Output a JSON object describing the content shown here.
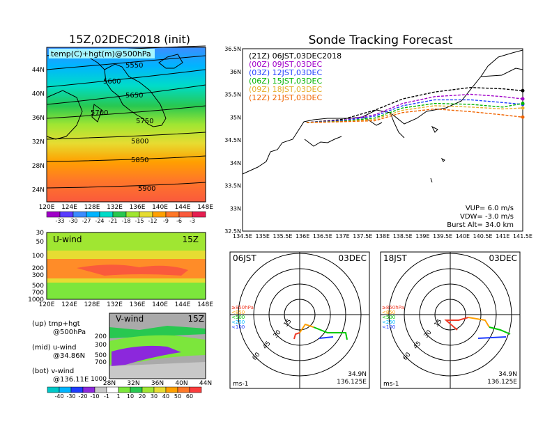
{
  "left_panel": {
    "title": "15Z,02DEC2018 (init)",
    "map_label": "temp(C)+hgt(m)@500hPa",
    "height_contours": [
      "5550",
      "5600",
      "5650",
      "5700",
      "5750",
      "5800",
      "5850",
      "5900"
    ],
    "lat_ticks": [
      "44N",
      "40N",
      "36N",
      "32N",
      "28N",
      "24N"
    ],
    "lon_ticks": [
      "120E",
      "124E",
      "128E",
      "132E",
      "136E",
      "140E",
      "144E",
      "148E"
    ],
    "temp_scale": [
      "-33",
      "-30",
      "-27",
      "-24",
      "-21",
      "-18",
      "-15",
      "-12",
      "-9",
      "-6",
      "-3"
    ],
    "u_wind_title": "U-wind",
    "u_wind_time": "15Z",
    "pressure_ticks": [
      "30",
      "50",
      "100",
      "200",
      "300",
      "500",
      "700",
      "1000"
    ],
    "v_wind_title": "V-wind",
    "v_wind_time": "15Z",
    "v_pressure_ticks": [
      "200",
      "300",
      "500",
      "700",
      "1000"
    ],
    "v_lat_ticks": [
      "28N",
      "32N",
      "36N",
      "40N",
      "44N"
    ],
    "wind_scale": [
      "-40",
      "-30",
      "-20",
      "-10",
      "-1",
      "1",
      "10",
      "20",
      "30",
      "40",
      "50",
      "60"
    ],
    "legend_up": "(up) tmp+hgt",
    "legend_up2": "@500hPa",
    "legend_mid": "(mid) u-wind",
    "legend_mid2": "@34.86N",
    "legend_bot": "(bot) v-wind",
    "legend_bot2": "@136.11E"
  },
  "tracking": {
    "title": "Sonde Tracking Forecast",
    "lat_ticks": [
      "36.5N",
      "36N",
      "35.5N",
      "35N",
      "34.5N",
      "34N",
      "33.5N",
      "33N",
      "32.5N"
    ],
    "lon_ticks": [
      "134.5E",
      "135E",
      "135.5E",
      "136E",
      "136.5E",
      "137E",
      "137.5E",
      "138E",
      "138.5E",
      "139E",
      "139.5E",
      "140E",
      "140.5E",
      "141E",
      "141.5E"
    ],
    "legend": [
      {
        "label": "(21Z)  06JST,03DEC2018",
        "color": "#000000"
      },
      {
        "label": "(00Z)  09JST,03DEC",
        "color": "#a000c8"
      },
      {
        "label": "(03Z)  12JST,03DEC",
        "color": "#1e3cff"
      },
      {
        "label": "(06Z)  15JST,03DEC",
        "color": "#00b400"
      },
      {
        "label": "(09Z)  18JST,03DEC",
        "color": "#e6af2d"
      },
      {
        "label": "(12Z)  21JST,03DEC",
        "color": "#f06400"
      }
    ],
    "vup": "VUP=  6.0  m/s",
    "vdw": "VDW=  -3.0  m/s",
    "burst": "Burst Alt=  34.0  km"
  },
  "hodographs": [
    {
      "time": "06JST",
      "date": "03DEC",
      "lat": "34.9N",
      "lon": "136.125E",
      "unit": "ms-1",
      "rings": [
        "15",
        "30",
        "45",
        "60"
      ],
      "pressure_legend": [
        "≥850hPa",
        "<850",
        "<500",
        "<250",
        "<100"
      ],
      "pressure_colors": [
        "#f03c28",
        "#ffa000",
        "#00c800",
        "#00b4ff",
        "#1e3cff"
      ]
    },
    {
      "time": "18JST",
      "date": "03DEC",
      "lat": "34.9N",
      "lon": "136.125E",
      "unit": "ms-1",
      "rings": [
        "15",
        "30",
        "45",
        "60"
      ],
      "pressure_legend": [
        "≥850hPa",
        "<850",
        "<500",
        "<250",
        "<100"
      ],
      "pressure_colors": [
        "#f03c28",
        "#ffa000",
        "#00c800",
        "#00b4ff",
        "#1e3cff"
      ]
    }
  ],
  "chart_data": [
    {
      "type": "heatmap",
      "title": "15Z,02DEC2018 (init)",
      "subtitle": "temp(C)+hgt(m)@500hPa",
      "xlabel": "",
      "ylabel": "",
      "xlim": [
        "120E",
        "148E"
      ],
      "ylim": [
        "22N",
        "47N"
      ],
      "contour_levels": [
        5550,
        5600,
        5650,
        5700,
        5750,
        5800,
        5850,
        5900
      ],
      "color_levels": [
        -33,
        -30,
        -27,
        -24,
        -21,
        -18,
        -15,
        -12,
        -9,
        -6,
        -3
      ]
    },
    {
      "type": "heatmap",
      "title": "U-wind",
      "subtitle": "15Z",
      "xlim": [
        "120E",
        "148E"
      ],
      "ylim": [
        1000,
        30
      ],
      "log_y": true
    },
    {
      "type": "heatmap",
      "title": "V-wind",
      "subtitle": "15Z",
      "xlim": [
        "28N",
        "44N"
      ],
      "ylim": [
        1000,
        150
      ],
      "log_y": true,
      "color_levels": [
        -40,
        -30,
        -20,
        -10,
        -1,
        1,
        10,
        20,
        30,
        40,
        50,
        60
      ]
    },
    {
      "type": "line",
      "title": "Sonde Tracking Forecast",
      "xlim": [
        134.5,
        141.5
      ],
      "ylim": [
        32.5,
        36.5
      ],
      "series": [
        {
          "name": "(21Z)  06JST,03DEC2018",
          "x": [
            136.1,
            137.0,
            137.8,
            138.5,
            139.3,
            140.2,
            141.0,
            141.5
          ],
          "y": [
            34.88,
            34.95,
            35.15,
            35.4,
            35.55,
            35.65,
            35.62,
            35.58
          ]
        },
        {
          "name": "(00Z)  09JST,03DEC",
          "x": [
            136.1,
            137.0,
            137.8,
            138.5,
            139.3,
            140.2,
            141.0,
            141.5
          ],
          "y": [
            34.88,
            34.93,
            35.05,
            35.3,
            35.45,
            35.5,
            35.45,
            35.4
          ]
        },
        {
          "name": "(03Z)  12JST,03DEC",
          "x": [
            136.1,
            137.0,
            137.8,
            138.5,
            139.3,
            140.2,
            141.0,
            141.5
          ],
          "y": [
            34.88,
            34.92,
            35.02,
            35.25,
            35.38,
            35.38,
            35.32,
            35.28
          ]
        },
        {
          "name": "(06Z)  15JST,03DEC",
          "x": [
            136.1,
            137.0,
            137.8,
            138.5,
            139.3,
            140.2,
            141.0,
            141.5
          ],
          "y": [
            34.88,
            34.91,
            34.98,
            35.2,
            35.3,
            35.28,
            35.22,
            35.3
          ]
        },
        {
          "name": "(09Z)  18JST,03DEC",
          "x": [
            136.1,
            137.0,
            137.8,
            138.5,
            139.3,
            140.2,
            141.0,
            141.5
          ],
          "y": [
            34.88,
            34.9,
            34.95,
            35.15,
            35.25,
            35.22,
            35.18,
            35.2
          ]
        },
        {
          "name": "(12Z)  21JST,03DEC",
          "x": [
            136.1,
            137.0,
            137.8,
            138.5,
            139.3,
            140.2,
            141.0,
            141.5
          ],
          "y": [
            34.88,
            34.9,
            34.92,
            35.1,
            35.18,
            35.12,
            35.05,
            35.0
          ]
        }
      ]
    },
    {
      "type": "scatter",
      "title": "06JST 03DEC",
      "xlabel": "ms-1",
      "rings": [
        15,
        30,
        45,
        60
      ]
    },
    {
      "type": "scatter",
      "title": "18JST 03DEC",
      "xlabel": "ms-1",
      "rings": [
        15,
        30,
        45,
        60
      ]
    }
  ]
}
